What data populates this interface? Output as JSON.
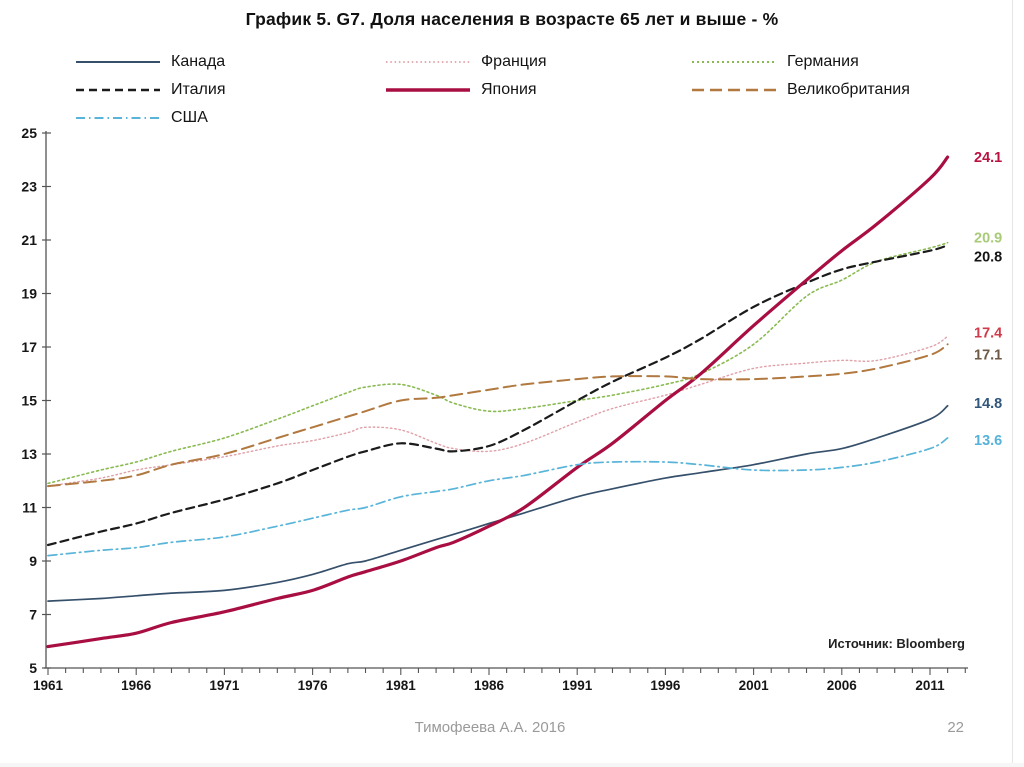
{
  "slide": {
    "source_note": "Источник: Bloomberg",
    "footer_author": "Тимофеева А.А. 2016",
    "footer_page": "22"
  },
  "chart_data": {
    "type": "line",
    "title": "График 5. G7. Доля населения в возрасте 65 лет и выше - %",
    "xlabel": "",
    "ylabel": "%",
    "ylim": [
      5,
      25
    ],
    "y_ticks": [
      5,
      7,
      9,
      11,
      13,
      15,
      17,
      19,
      21,
      23,
      25
    ],
    "x_range": [
      1961,
      2013
    ],
    "x_minor_step": 1,
    "x_tick_labels": [
      1961,
      1966,
      1971,
      1976,
      1981,
      1986,
      1991,
      1996,
      2001,
      2006,
      2011
    ],
    "grid": false,
    "legend_position": "top",
    "x": [
      1961,
      1964,
      1966,
      1968,
      1971,
      1974,
      1976,
      1978,
      1979,
      1981,
      1983,
      1984,
      1986,
      1988,
      1991,
      1993,
      1996,
      1998,
      2001,
      2004,
      2006,
      2008,
      2011,
      2012
    ],
    "series": [
      {
        "id": "canada",
        "name": "Канада",
        "color": "#36506b",
        "dash": "solid",
        "width": 1.7,
        "end_label": "14.8",
        "label_color": "#30567c",
        "label_dy": -3,
        "values": [
          7.5,
          7.6,
          7.7,
          7.8,
          7.9,
          8.2,
          8.5,
          8.9,
          9.0,
          9.4,
          9.8,
          10.0,
          10.4,
          10.8,
          11.4,
          11.7,
          12.1,
          12.3,
          12.6,
          13.0,
          13.2,
          13.6,
          14.3,
          14.8
        ]
      },
      {
        "id": "france",
        "name": "Франция",
        "color": "#dfa0a8",
        "dash": "1.5 2.8",
        "width": 1.4,
        "end_label": "17.4",
        "label_color": "#cf3b4a",
        "label_dy": -4,
        "values": [
          11.8,
          12.1,
          12.4,
          12.6,
          12.9,
          13.3,
          13.5,
          13.8,
          14.0,
          13.9,
          13.4,
          13.2,
          13.1,
          13.4,
          14.2,
          14.7,
          15.2,
          15.6,
          16.2,
          16.4,
          16.5,
          16.5,
          17.0,
          17.4
        ]
      },
      {
        "id": "germany",
        "name": "Германия",
        "color": "#8abb52",
        "dash": "2 3",
        "width": 1.6,
        "end_label": "20.9",
        "label_color": "#a9cb79",
        "label_dy": -5,
        "values": [
          11.9,
          12.4,
          12.7,
          13.1,
          13.6,
          14.3,
          14.8,
          15.3,
          15.5,
          15.6,
          15.2,
          14.9,
          14.6,
          14.7,
          15.0,
          15.2,
          15.6,
          16.0,
          17.1,
          18.9,
          19.5,
          20.2,
          20.7,
          20.9
        ]
      },
      {
        "id": "italy",
        "name": "Италия",
        "color": "#1b1b1b",
        "dash": "8 5",
        "width": 2.2,
        "end_label": "20.8",
        "label_color": "#141414",
        "label_dy": 11,
        "values": [
          9.6,
          10.1,
          10.4,
          10.8,
          11.3,
          11.9,
          12.4,
          12.9,
          13.1,
          13.4,
          13.2,
          13.1,
          13.3,
          13.9,
          15.0,
          15.7,
          16.6,
          17.3,
          18.5,
          19.4,
          19.9,
          20.2,
          20.6,
          20.8
        ]
      },
      {
        "id": "japan",
        "name": "Япония",
        "color": "#a90e42",
        "dash": "solid",
        "width": 3.2,
        "end_label": "24.1",
        "label_color": "#bb1140",
        "label_dy": 0,
        "values": [
          5.8,
          6.1,
          6.3,
          6.7,
          7.1,
          7.6,
          7.9,
          8.4,
          8.6,
          9.0,
          9.5,
          9.7,
          10.3,
          11.0,
          12.5,
          13.4,
          15.0,
          16.0,
          17.8,
          19.5,
          20.6,
          21.6,
          23.3,
          24.1
        ]
      },
      {
        "id": "uk",
        "name": "Великобритания",
        "color": "#b1793f",
        "dash": "12 6",
        "width": 2.0,
        "end_label": "17.1",
        "label_color": "#6e5a44",
        "label_dy": 10,
        "values": [
          11.8,
          12.0,
          12.2,
          12.6,
          13.0,
          13.6,
          14.0,
          14.4,
          14.6,
          15.0,
          15.1,
          15.2,
          15.4,
          15.6,
          15.8,
          15.9,
          15.9,
          15.8,
          15.8,
          15.9,
          16.0,
          16.2,
          16.7,
          17.1
        ]
      },
      {
        "id": "usa",
        "name": "США",
        "color": "#58b4d8",
        "dash": "9 4 1.5 4",
        "width": 1.7,
        "end_label": "13.6",
        "label_color": "#55b2da",
        "label_dy": 2,
        "values": [
          9.2,
          9.4,
          9.5,
          9.7,
          9.9,
          10.3,
          10.6,
          10.9,
          11.0,
          11.4,
          11.6,
          11.7,
          12.0,
          12.2,
          12.6,
          12.7,
          12.7,
          12.6,
          12.4,
          12.4,
          12.5,
          12.7,
          13.2,
          13.6
        ]
      }
    ],
    "legend_columns": [
      [
        "canada",
        "italy",
        "usa"
      ],
      [
        "france",
        "japan"
      ],
      [
        "germany",
        "uk"
      ]
    ]
  }
}
